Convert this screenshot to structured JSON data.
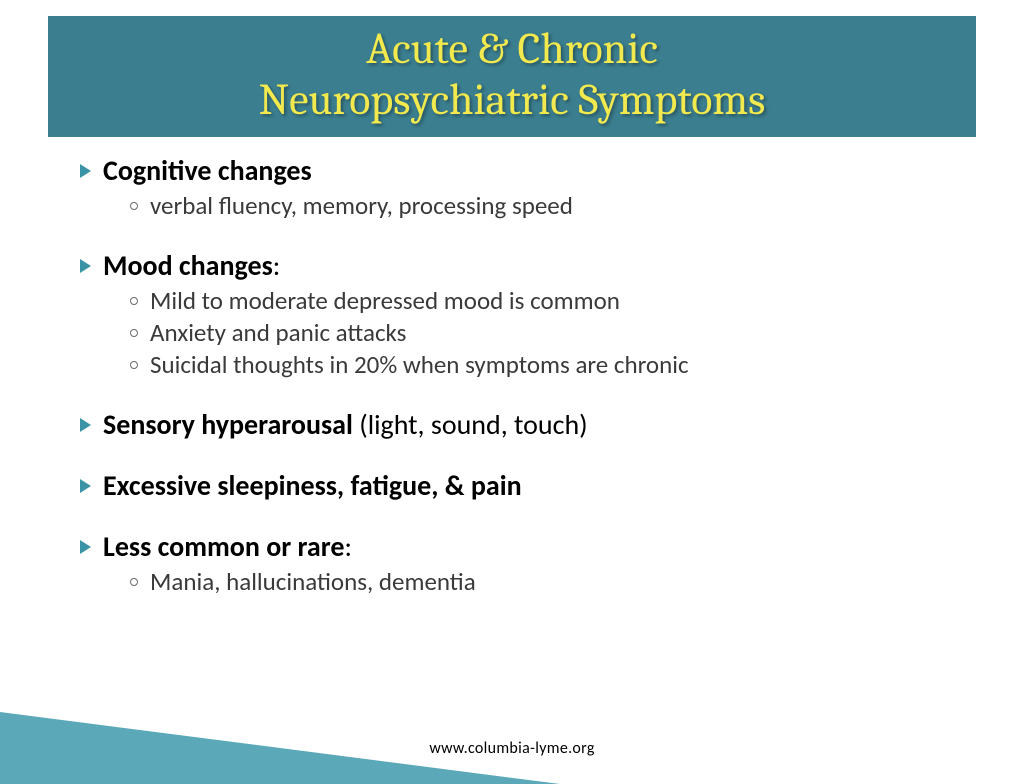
{
  "colors": {
    "title_bg": "#3b7e8f",
    "title_text": "#f2e94e",
    "bullet": "#3b94a6",
    "subbullet": "#6a6a6a",
    "subtext": "#3a3a3a",
    "wedge_black": "#000000",
    "wedge_teal": "#5aa8b8",
    "wedge_teal_light": "#8bc7d3"
  },
  "title": {
    "line1": "Acute & Chronic",
    "line2": "Neuropsychiatric Symptoms",
    "fontsize": 44
  },
  "bullets": [
    {
      "bold": "Cognitive changes",
      "tail": "",
      "subs": [
        "verbal fluency, memory, processing speed"
      ]
    },
    {
      "bold": "Mood changes",
      "tail": ":",
      "subs": [
        "Mild to moderate depressed mood is common",
        "Anxiety and panic attacks",
        "Suicidal thoughts in 20% when symptoms are chronic"
      ]
    },
    {
      "bold": "Sensory hyperarousal",
      "tail": " (light, sound, touch)",
      "subs": []
    },
    {
      "bold": "Excessive sleepiness, fatigue, & pain",
      "tail": "",
      "subs": []
    },
    {
      "bold": "Less common or rare",
      "tail": ":",
      "subs": [
        "Mania, hallucinations, dementia"
      ]
    }
  ],
  "footer": "www.columbia-lyme.org"
}
